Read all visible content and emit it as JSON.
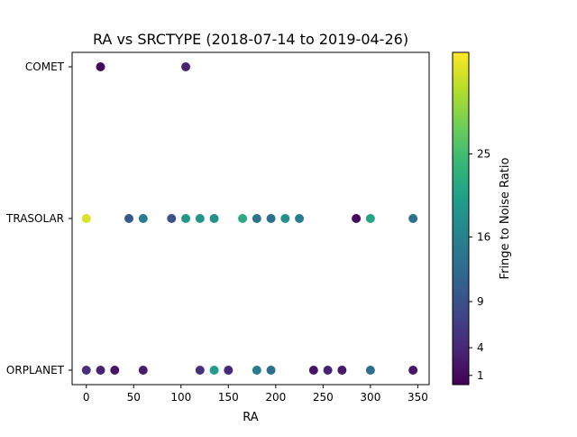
{
  "chart_data": {
    "type": "scatter",
    "title": "RA vs SRCTYPE (2018-07-14 to 2019-04-26)",
    "xlabel": "RA",
    "ylabel": "",
    "xlim": [
      -15,
      362
    ],
    "x_ticks": [
      0,
      50,
      100,
      150,
      200,
      250,
      300,
      350
    ],
    "categories": [
      "MINORPLANET",
      "EXTRASOLAR",
      "COMET"
    ],
    "y_tick_labels_visible": [
      "ORPLANET",
      "TRASOLAR",
      "COMET"
    ],
    "grid": false,
    "legend": "none",
    "colorbar": {
      "label": "Fringe to Noise Ratio",
      "colormap": "viridis",
      "ticks": [
        1,
        4,
        9,
        16,
        25
      ],
      "range": [
        0,
        36
      ]
    },
    "colormap_stops": [
      "#440154",
      "#482878",
      "#3e4989",
      "#31688e",
      "#26828e",
      "#1f9e89",
      "#35b779",
      "#6ece58",
      "#b5de2b",
      "#fde725"
    ],
    "points": [
      {
        "x": 15,
        "y": "COMET",
        "c": 0.8
      },
      {
        "x": 105,
        "y": "COMET",
        "c": 3.5
      },
      {
        "x": 0,
        "y": "EXTRASOLAR",
        "c": 34
      },
      {
        "x": 45,
        "y": "EXTRASOLAR",
        "c": 10
      },
      {
        "x": 60,
        "y": "EXTRASOLAR",
        "c": 15
      },
      {
        "x": 90,
        "y": "EXTRASOLAR",
        "c": 9
      },
      {
        "x": 105,
        "y": "EXTRASOLAR",
        "c": 19
      },
      {
        "x": 120,
        "y": "EXTRASOLAR",
        "c": 19
      },
      {
        "x": 135,
        "y": "EXTRASOLAR",
        "c": 18
      },
      {
        "x": 165,
        "y": "EXTRASOLAR",
        "c": 22
      },
      {
        "x": 180,
        "y": "EXTRASOLAR",
        "c": 14
      },
      {
        "x": 195,
        "y": "EXTRASOLAR",
        "c": 13
      },
      {
        "x": 210,
        "y": "EXTRASOLAR",
        "c": 18
      },
      {
        "x": 225,
        "y": "EXTRASOLAR",
        "c": 15
      },
      {
        "x": 285,
        "y": "EXTRASOLAR",
        "c": 0.8
      },
      {
        "x": 300,
        "y": "EXTRASOLAR",
        "c": 21
      },
      {
        "x": 345,
        "y": "EXTRASOLAR",
        "c": 13
      },
      {
        "x": 0,
        "y": "MINORPLANET",
        "c": 5
      },
      {
        "x": 15,
        "y": "MINORPLANET",
        "c": 3.5
      },
      {
        "x": 30,
        "y": "MINORPLANET",
        "c": 2
      },
      {
        "x": 60,
        "y": "MINORPLANET",
        "c": 3
      },
      {
        "x": 120,
        "y": "MINORPLANET",
        "c": 5
      },
      {
        "x": 135,
        "y": "MINORPLANET",
        "c": 20
      },
      {
        "x": 150,
        "y": "MINORPLANET",
        "c": 4
      },
      {
        "x": 180,
        "y": "MINORPLANET",
        "c": 15
      },
      {
        "x": 195,
        "y": "MINORPLANET",
        "c": 13
      },
      {
        "x": 240,
        "y": "MINORPLANET",
        "c": 2
      },
      {
        "x": 255,
        "y": "MINORPLANET",
        "c": 3.5
      },
      {
        "x": 270,
        "y": "MINORPLANET",
        "c": 2.5
      },
      {
        "x": 300,
        "y": "MINORPLANET",
        "c": 13
      },
      {
        "x": 345,
        "y": "MINORPLANET",
        "c": 2
      }
    ]
  }
}
